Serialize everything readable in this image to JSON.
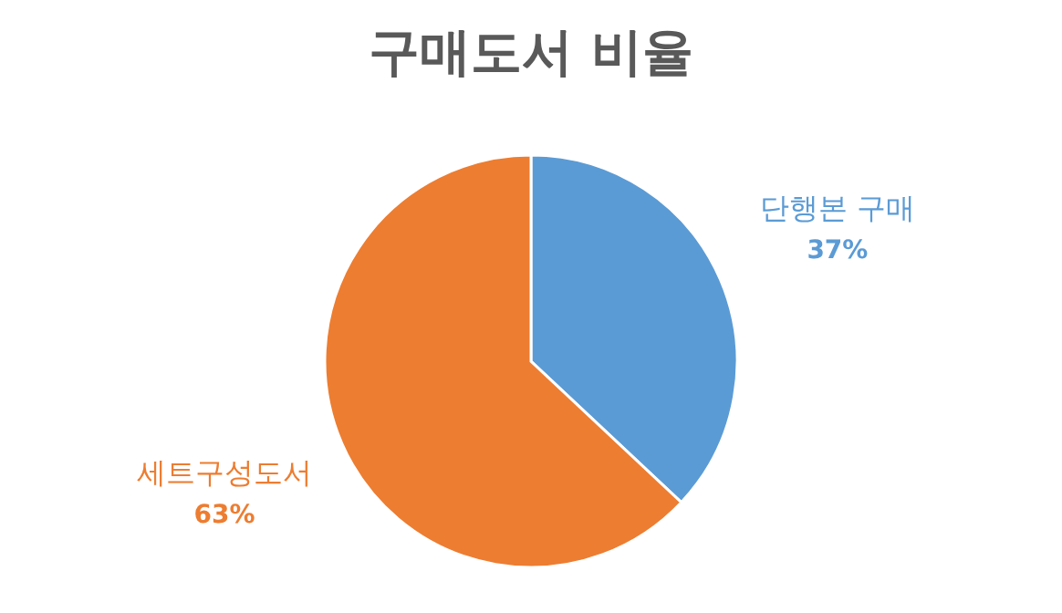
{
  "chart_data": {
    "type": "pie",
    "title": "구매도서 비율",
    "categories": [
      "단행본 구매",
      "세트구성도서"
    ],
    "values": [
      37,
      63
    ],
    "value_labels": [
      "37%",
      "63%"
    ],
    "colors": [
      "#5b9bd5",
      "#ed7d31"
    ],
    "legend": false
  }
}
